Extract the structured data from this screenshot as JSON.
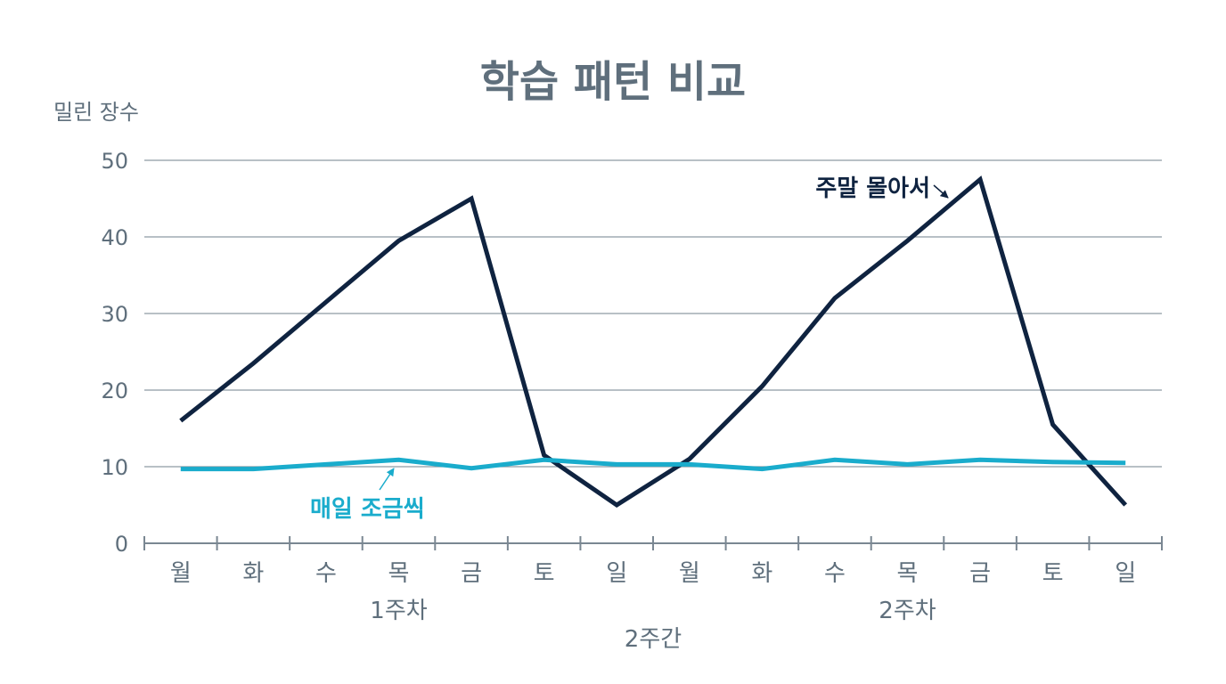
{
  "chart_data": {
    "type": "line",
    "title": "학습 패턴 비교",
    "ylabel": "밀린 장수",
    "xlabel": "2주간",
    "ylim": [
      0,
      50
    ],
    "yticks": [
      0,
      10,
      20,
      30,
      40,
      50
    ],
    "grid": true,
    "categories": [
      "월",
      "화",
      "수",
      "목",
      "금",
      "토",
      "일",
      "월",
      "화",
      "수",
      "목",
      "금",
      "토",
      "일"
    ],
    "groups": [
      {
        "label": "1주차",
        "start": 0,
        "end": 6
      },
      {
        "label": "2주차",
        "start": 7,
        "end": 13
      }
    ],
    "series": [
      {
        "name": "주말 몰아서",
        "color": "#0f2340",
        "values": [
          16,
          23.5,
          31.5,
          39.5,
          45,
          11.5,
          5,
          11,
          20.5,
          32,
          39.5,
          47.5,
          15.5,
          5
        ]
      },
      {
        "name": "매일 조금씩",
        "color": "#1aaccc",
        "values": [
          9.7,
          9.7,
          10.3,
          10.9,
          9.8,
          10.9,
          10.3,
          10.3,
          9.7,
          10.9,
          10.3,
          10.9,
          10.6,
          10.5
        ]
      }
    ]
  }
}
